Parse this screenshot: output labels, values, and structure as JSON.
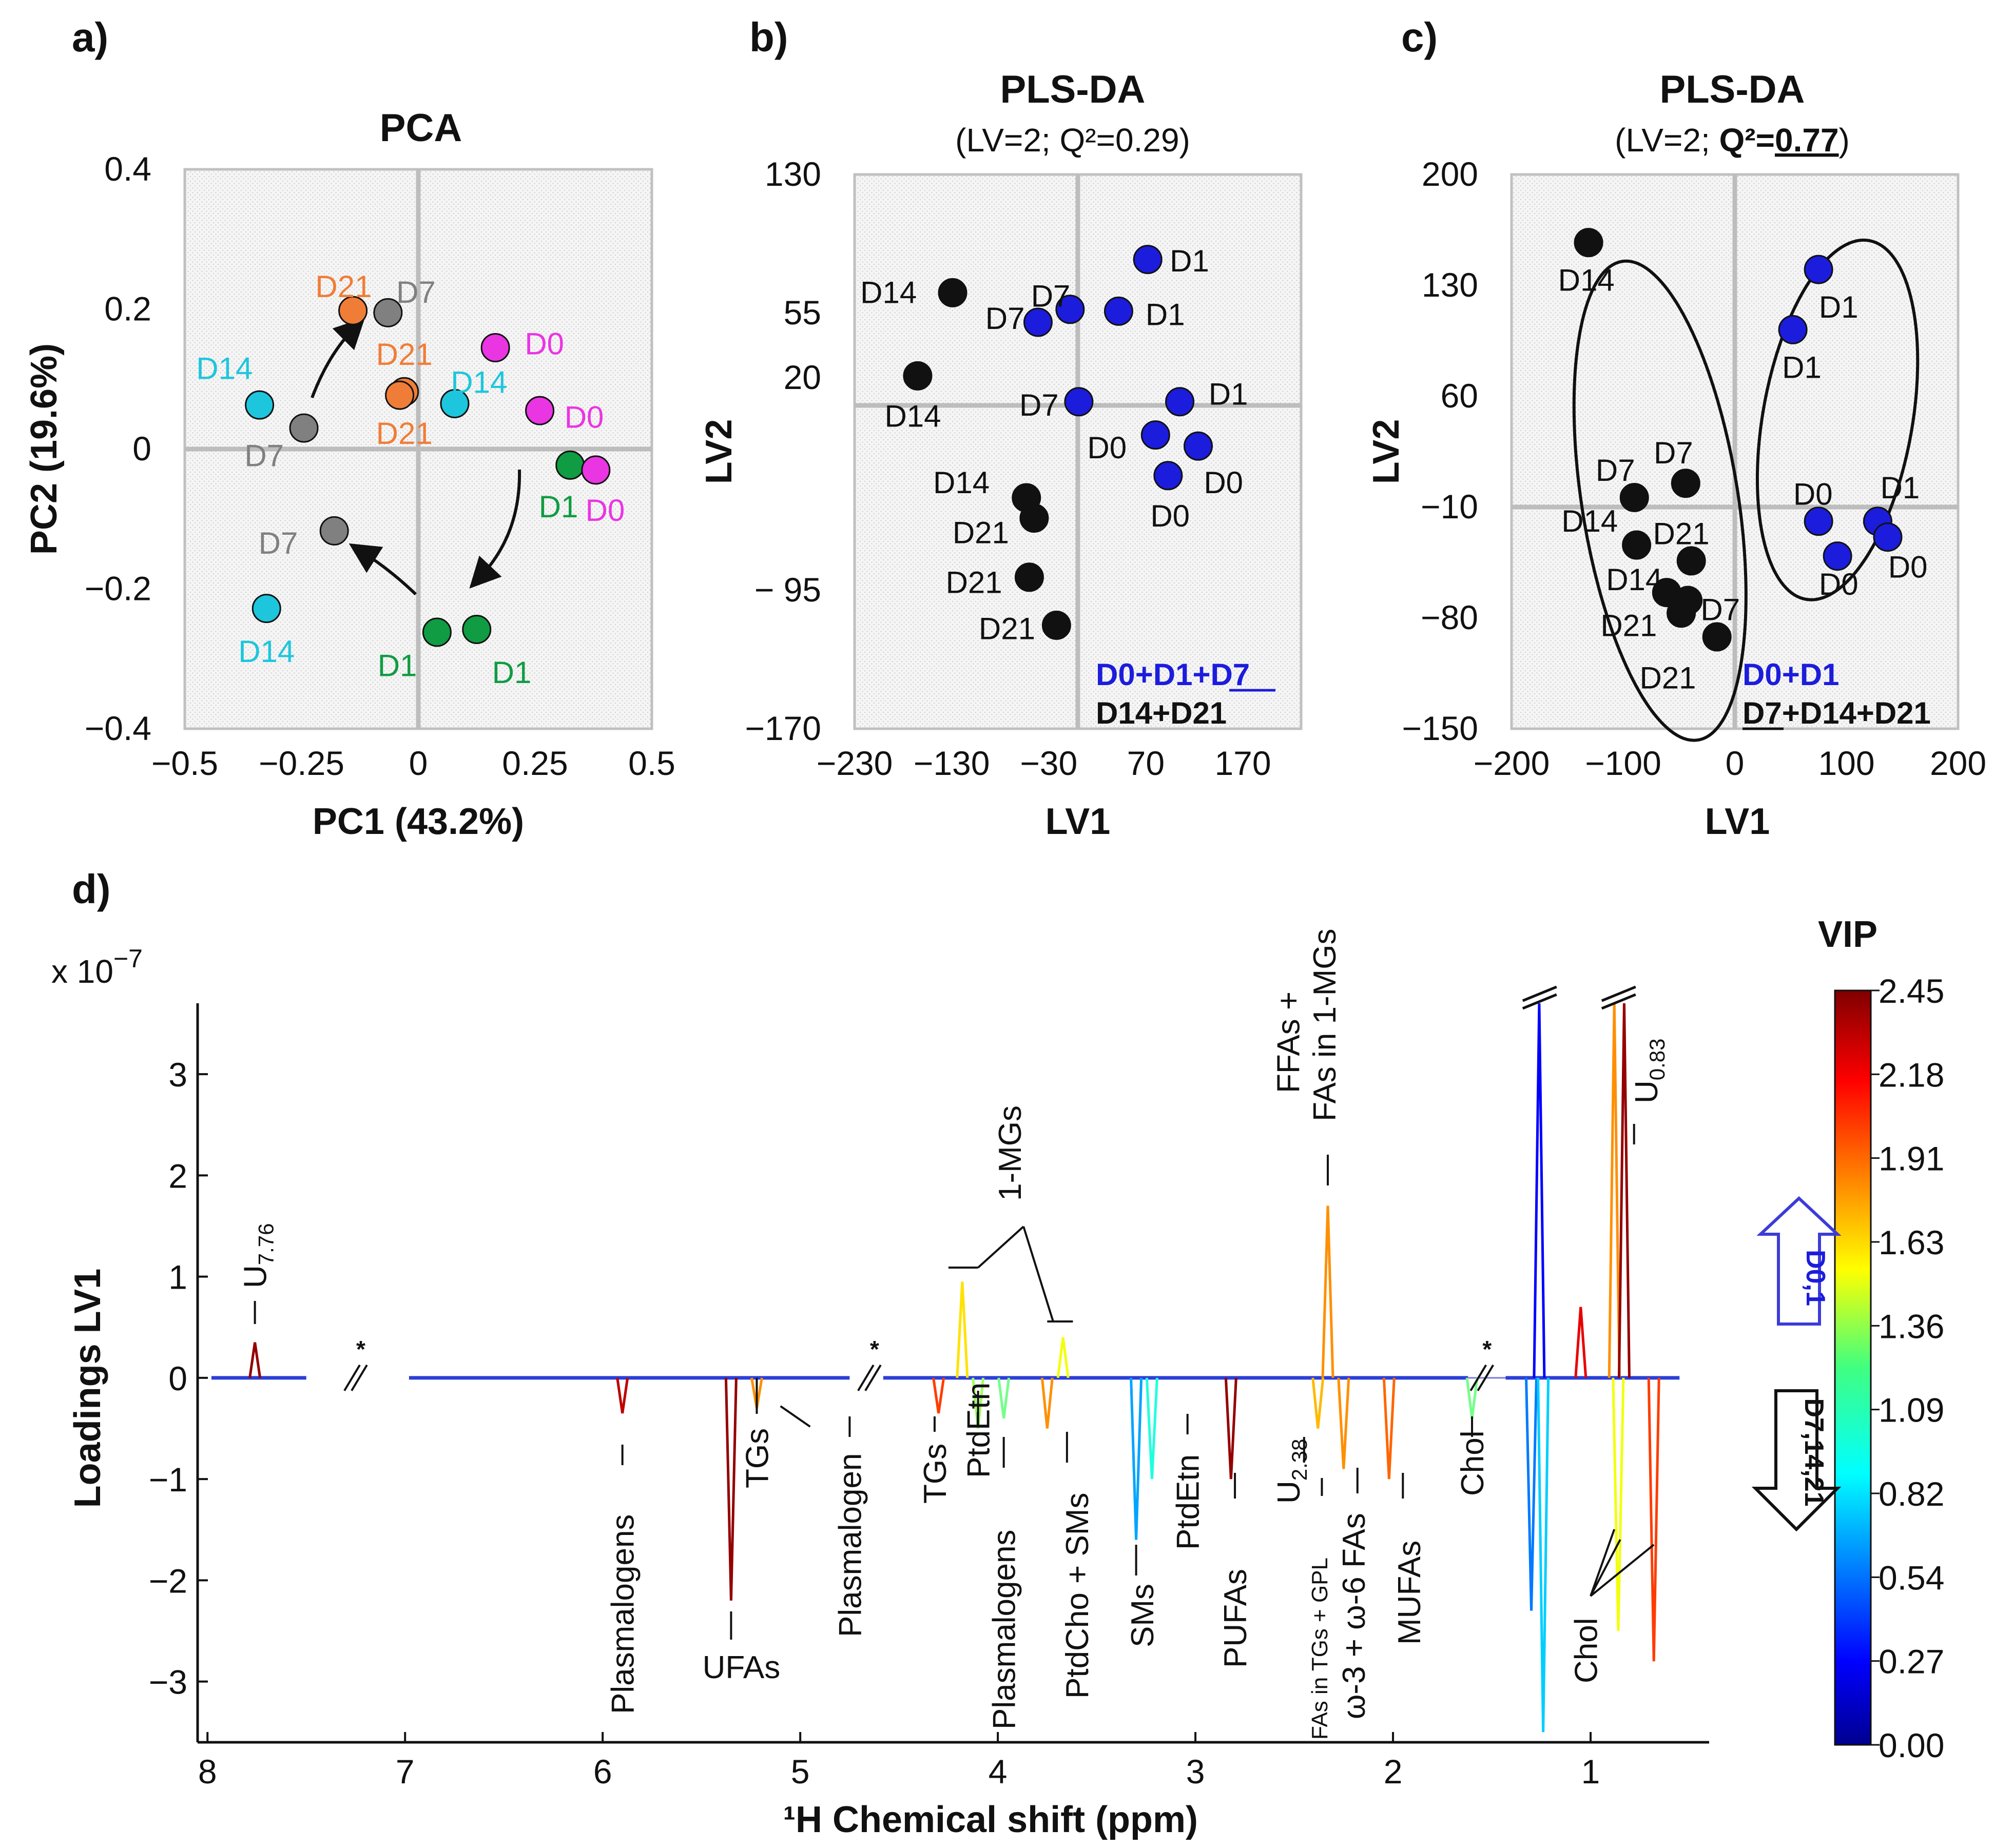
{
  "figure_labels": {
    "a": "a)",
    "b": "b)",
    "c": "c)",
    "d": "d)"
  },
  "colors": {
    "D0": "#ea35e3",
    "D1": "#109c43",
    "D7": "#808080",
    "D14": "#1dc6dc",
    "D21": "#f07d37",
    "blue": "#1c1cdc",
    "black": "#111111",
    "grid_line": "#bdbdbd"
  },
  "chart_data": [
    {
      "id": "a",
      "type": "scatter",
      "title": "PCA",
      "xlabel": "PC1 (43.2%)",
      "ylabel": "PC2 (19.6%)",
      "xlim": [
        -0.5,
        0.5
      ],
      "ylim": [
        -0.4,
        0.4
      ],
      "xticks": [
        -0.5,
        -0.25,
        0,
        0.25,
        0.5
      ],
      "xtick_labels": [
        "−0.5",
        "−0.25",
        "0",
        "0.25",
        "0.5"
      ],
      "yticks": [
        -0.4,
        -0.2,
        0,
        0.2,
        0.4
      ],
      "ytick_labels": [
        "−0.4",
        "−0.2",
        "0",
        "0.2",
        "0.4"
      ],
      "points": [
        {
          "label": "D21",
          "group": "D21",
          "x": -0.14,
          "y": 0.198,
          "lx": -0.16,
          "ly": 0.232
        },
        {
          "label": "D7",
          "group": "D7",
          "x": -0.065,
          "y": 0.195,
          "lx": -0.005,
          "ly": 0.224
        },
        {
          "label": "D21",
          "group": "D21",
          "x": -0.03,
          "y": 0.082,
          "lx": -0.03,
          "ly": 0.135
        },
        {
          "label": "D21",
          "group": "D21",
          "x": -0.04,
          "y": 0.077,
          "lx": -0.03,
          "ly": 0.022
        },
        {
          "label": "D0",
          "group": "D0",
          "x": 0.165,
          "y": 0.145,
          "lx": 0.27,
          "ly": 0.15
        },
        {
          "label": "D14",
          "group": "D14",
          "x": 0.078,
          "y": 0.065,
          "lx": 0.13,
          "ly": 0.095
        },
        {
          "label": "D0",
          "group": "D0",
          "x": 0.26,
          "y": 0.055,
          "lx": 0.355,
          "ly": 0.045
        },
        {
          "label": "D14",
          "group": "D14",
          "x": -0.34,
          "y": 0.063,
          "lx": -0.415,
          "ly": 0.115
        },
        {
          "label": "D7",
          "group": "D7",
          "x": -0.245,
          "y": 0.03,
          "lx": -0.33,
          "ly": -0.01
        },
        {
          "label": "D1",
          "group": "D1",
          "x": 0.325,
          "y": -0.023,
          "lx": 0.3,
          "ly": -0.083
        },
        {
          "label": "D0",
          "group": "D0",
          "x": 0.38,
          "y": -0.03,
          "lx": 0.4,
          "ly": -0.088
        },
        {
          "label": "D7",
          "group": "D7",
          "x": -0.18,
          "y": -0.117,
          "lx": -0.3,
          "ly": -0.135
        },
        {
          "label": "D14",
          "group": "D14",
          "x": -0.325,
          "y": -0.228,
          "lx": -0.325,
          "ly": -0.29
        },
        {
          "label": "D1",
          "group": "D1",
          "x": 0.04,
          "y": -0.262,
          "lx": -0.045,
          "ly": -0.31
        },
        {
          "label": "D1",
          "group": "D1",
          "x": 0.125,
          "y": -0.258,
          "lx": 0.2,
          "ly": -0.32
        }
      ]
    },
    {
      "id": "b",
      "type": "scatter",
      "title": "PLS-DA",
      "subtitle": "(LV=2; Q²=0.29)",
      "xlabel": "LV1",
      "ylabel": "LV2",
      "xlim": [
        -230,
        230
      ],
      "ylim": [
        -170,
        130
      ],
      "xticks": [
        -230,
        -130,
        -30,
        70,
        170
      ],
      "xtick_labels": [
        "−230",
        "−130",
        "−30",
        "70",
        "170"
      ],
      "yticks": [
        -170,
        -95,
        20,
        55,
        130
      ],
      "ytick_labels": [
        "−170",
        "− 95",
        "20",
        "55",
        "130"
      ],
      "legend": [
        "D0+D1+D7",
        "D14+D21"
      ],
      "points": [
        {
          "label": "D1",
          "group": "blue",
          "x": 72,
          "y": 84,
          "lx": 115,
          "ly": 83
        },
        {
          "label": "D14",
          "group": "black",
          "x": -129,
          "y": 66,
          "lx": -195,
          "ly": 66
        },
        {
          "label": "D7",
          "group": "blue",
          "x": -8,
          "y": 57,
          "lx": -28,
          "ly": 64
        },
        {
          "label": "D1",
          "group": "blue",
          "x": 42,
          "y": 56,
          "lx": 90,
          "ly": 54
        },
        {
          "label": "D7",
          "group": "blue",
          "x": -41,
          "y": 50,
          "lx": -75,
          "ly": 52
        },
        {
          "label": "D14",
          "group": "black",
          "x": -165,
          "y": 21,
          "lx": -170,
          "ly": -1
        },
        {
          "label": "D7",
          "group": "blue",
          "x": 1,
          "y": 7,
          "lx": -40,
          "ly": 5
        },
        {
          "label": "D1",
          "group": "blue",
          "x": 105,
          "y": 7,
          "lx": 155,
          "ly": 11
        },
        {
          "label": "D0",
          "group": "blue",
          "x": 80,
          "y": -11,
          "lx": 30,
          "ly": -18
        },
        {
          "label": "D0",
          "group": "blue",
          "x": 124,
          "y": -17,
          "lx": 150,
          "ly": -37
        },
        {
          "label": "D0",
          "group": "blue",
          "x": 93,
          "y": -33,
          "lx": 95,
          "ly": -55
        },
        {
          "label": "D14",
          "group": "black",
          "x": -53,
          "y": -45,
          "lx": -120,
          "ly": -37
        },
        {
          "label": "D21",
          "group": "black",
          "x": -45,
          "y": -56,
          "lx": -100,
          "ly": -64
        },
        {
          "label": "D21",
          "group": "black",
          "x": -50,
          "y": -88,
          "lx": -107,
          "ly": -91
        },
        {
          "label": "D21",
          "group": "black",
          "x": -22,
          "y": -114,
          "lx": -73,
          "ly": -116
        }
      ]
    },
    {
      "id": "c",
      "type": "scatter",
      "title": "PLS-DA",
      "subtitle_prefix": "(LV=2; ",
      "subtitle_q": "Q²=",
      "subtitle_value": "0.77",
      "subtitle_suffix": ")",
      "xlabel": "LV1",
      "ylabel": "LV2",
      "xlim": [
        -200,
        200
      ],
      "ylim": [
        -150,
        200
      ],
      "xticks": [
        -200,
        -100,
        0,
        100,
        200
      ],
      "xtick_labels": [
        "−200",
        "−100",
        "0",
        "100",
        "200"
      ],
      "yticks": [
        -150,
        -80,
        -10,
        60,
        130,
        200
      ],
      "ytick_labels": [
        "−150",
        "−80",
        "−10",
        "60",
        "130",
        "200"
      ],
      "legend": [
        "D0+D1",
        "D7+D14+D21"
      ],
      "points": [
        {
          "label": "D14",
          "group": "black",
          "x": -131,
          "y": 157,
          "lx": -133,
          "ly": 133
        },
        {
          "label": "D1",
          "group": "blue",
          "x": 75,
          "y": 140,
          "lx": 93,
          "ly": 116
        },
        {
          "label": "D1",
          "group": "blue",
          "x": 52,
          "y": 102,
          "lx": 60,
          "ly": 78
        },
        {
          "label": "D7",
          "group": "black",
          "x": -44,
          "y": 5,
          "lx": -55,
          "ly": 24
        },
        {
          "label": "D7",
          "group": "black",
          "x": -90,
          "y": -4,
          "lx": -107,
          "ly": 13
        },
        {
          "label": "D0",
          "group": "blue",
          "x": 75,
          "y": -19,
          "lx": 70,
          "ly": -2
        },
        {
          "label": "D1",
          "group": "blue",
          "x": 128,
          "y": -19,
          "lx": 148,
          "ly": 2
        },
        {
          "label": "D14",
          "group": "black",
          "x": -88,
          "y": -34,
          "lx": -130,
          "ly": -19
        },
        {
          "label": "D21",
          "group": "black",
          "x": -39,
          "y": -44,
          "lx": -48,
          "ly": -27
        },
        {
          "label": "D0",
          "group": "blue",
          "x": 92,
          "y": -41,
          "lx": 93,
          "ly": -59
        },
        {
          "label": "D0",
          "group": "blue",
          "x": 137,
          "y": -29,
          "lx": 155,
          "ly": -48
        },
        {
          "label": "D14",
          "group": "black",
          "x": -61,
          "y": -64,
          "lx": -90,
          "ly": -56
        },
        {
          "label": "D7",
          "group": "black",
          "x": -42,
          "y": -69,
          "lx": -13,
          "ly": -75
        },
        {
          "label": "D21",
          "group": "black",
          "x": -48,
          "y": -77,
          "lx": -95,
          "ly": -85
        },
        {
          "label": "D21",
          "group": "black",
          "x": -16,
          "y": -92,
          "lx": -60,
          "ly": -118
        }
      ],
      "ellipses": [
        {
          "cx": -67,
          "cy": -6,
          "rx": 70,
          "ry": 153,
          "rot": -9
        },
        {
          "cx": 92,
          "cy": 45,
          "rx": 67,
          "ry": 115,
          "rot": 10
        }
      ]
    },
    {
      "id": "d",
      "type": "line",
      "xlabel": "¹H Chemical shift (ppm)",
      "ylabel": "Loadings LV1",
      "multiplier": "x 10",
      "multiplier_exp": "−7",
      "xlim": [
        8.05,
        0.4
      ],
      "ylim": [
        -3.6,
        3.7
      ],
      "xticks": [
        8,
        7,
        6,
        5,
        4,
        3,
        2,
        1
      ],
      "yticks": [
        -3,
        -2,
        -1,
        0,
        1,
        2,
        3
      ],
      "ytick_labels": [
        "−3",
        "−2",
        "−1",
        "0",
        "1",
        "2",
        "3"
      ],
      "colorbar": {
        "title": "VIP",
        "ticks": [
          "2.45",
          "2.18",
          "1.91",
          "1.63",
          "1.36",
          "1.09",
          "0.82",
          "0.54",
          "0.27",
          "0.00"
        ]
      },
      "arrows": {
        "up": "D0,1",
        "down": "D7,14,21"
      },
      "axis_break_mark": "*",
      "peaks": [
        {
          "x": 7.76,
          "y": 0.35,
          "vip": 2.4
        },
        {
          "x": 5.9,
          "y": -0.35,
          "vip": 2.3
        },
        {
          "x": 5.35,
          "y": -2.2,
          "vip": 2.4
        },
        {
          "x": 5.22,
          "y": -0.3,
          "vip": 1.8
        },
        {
          "x": 4.3,
          "y": -0.35,
          "vip": 2.0
        },
        {
          "x": 4.18,
          "y": 0.95,
          "vip": 1.6
        },
        {
          "x": 4.1,
          "y": -0.5,
          "vip": 1.3
        },
        {
          "x": 3.97,
          "y": -0.4,
          "vip": 1.2
        },
        {
          "x": 3.75,
          "y": -0.5,
          "vip": 1.8
        },
        {
          "x": 3.67,
          "y": 0.4,
          "vip": 1.5
        },
        {
          "x": 3.3,
          "y": -1.6,
          "vip": 0.7
        },
        {
          "x": 3.22,
          "y": -1.0,
          "vip": 1.0
        },
        {
          "x": 2.82,
          "y": -1.0,
          "vip": 2.4
        },
        {
          "x": 2.38,
          "y": -0.5,
          "vip": 1.7
        },
        {
          "x": 2.33,
          "y": 1.7,
          "vip": 1.8
        },
        {
          "x": 2.25,
          "y": -0.9,
          "vip": 1.8
        },
        {
          "x": 2.02,
          "y": -1.0,
          "vip": 1.9
        },
        {
          "x": 1.6,
          "y": -0.4,
          "vip": 1.2
        },
        {
          "x": 1.3,
          "y": -2.3,
          "vip": 0.6
        },
        {
          "x": 1.26,
          "y": 3.7,
          "vip": 0.3
        },
        {
          "x": 1.24,
          "y": -3.5,
          "vip": 0.8
        },
        {
          "x": 1.05,
          "y": 0.7,
          "vip": 2.2
        },
        {
          "x": 0.88,
          "y": 3.7,
          "vip": 1.8
        },
        {
          "x": 0.86,
          "y": -2.5,
          "vip": 1.5
        },
        {
          "x": 0.83,
          "y": 3.7,
          "vip": 2.4
        },
        {
          "x": 0.68,
          "y": -2.8,
          "vip": 2.0
        }
      ],
      "annotations": [
        {
          "id": "u776",
          "text": "U",
          "sub": "7.76"
        },
        {
          "id": "plasmalogens1",
          "text": "Plasmalogens"
        },
        {
          "id": "ufas",
          "text": "UFAs"
        },
        {
          "id": "tgs1",
          "text": "TGs"
        },
        {
          "id": "plasmalogen2",
          "text": "Plasmalogen"
        },
        {
          "id": "tgs2",
          "text": "TGs"
        },
        {
          "id": "ptdetn1",
          "text": "PtdEtn"
        },
        {
          "id": "plasmalogens3",
          "text": "Plasmalogens"
        },
        {
          "id": "ptdchosms",
          "text": "PtdCho + SMs"
        },
        {
          "id": "mgs",
          "text": "1-MGs"
        },
        {
          "id": "sms",
          "text": "SMs"
        },
        {
          "id": "ptdetn2",
          "text": "PtdEtn"
        },
        {
          "id": "pufas",
          "text": "PUFAs"
        },
        {
          "id": "u238",
          "text": "U",
          "sub": "2.38"
        },
        {
          "id": "fas_tgs",
          "text": "FAs in TGs + GPL"
        },
        {
          "id": "w3w6",
          "text": "ω-3 + ω-6 FAs"
        },
        {
          "id": "mufas",
          "text": "MUFAs"
        },
        {
          "id": "chol1",
          "text": "Chol"
        },
        {
          "id": "ffas1",
          "text": "FFAs +"
        },
        {
          "id": "ffas2",
          "text": "FAs in 1-MGs"
        },
        {
          "id": "chol2",
          "text": "Chol"
        },
        {
          "id": "u083",
          "text": "U",
          "sub": "0.83"
        }
      ]
    }
  ]
}
